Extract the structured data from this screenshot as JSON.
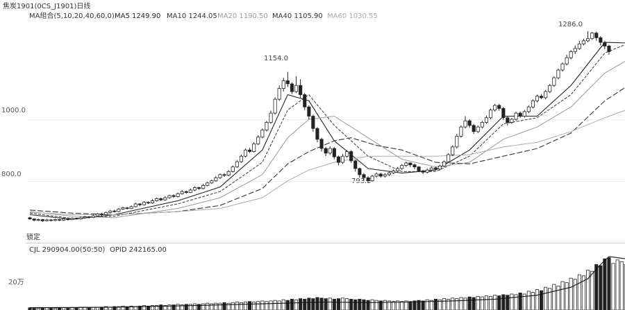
{
  "header": {
    "symbol_label": "焦炭1901(0CS_J1901)日线",
    "ma_combo_label": "MA组合(5,10,20,40,60,0)",
    "ma_readouts": [
      {
        "label": "MA5 1249.90",
        "color": "#222222"
      },
      {
        "label": "MA10 1244.05",
        "color": "#333333"
      },
      {
        "label": "MA20 1190.50",
        "color": "#9a9a9a"
      },
      {
        "label": "MA40 1105.90",
        "color": "#333333"
      },
      {
        "label": "MA60 1030.55",
        "color": "#aaaaaa"
      }
    ]
  },
  "price_panel": {
    "y_ticks": [
      {
        "label": "1000.0",
        "value": 1000
      },
      {
        "label": "800.0",
        "value": 800
      }
    ],
    "annotations": [
      {
        "label": "1154.0",
        "value": 1154
      },
      {
        "label": "793.5",
        "value": 793.5
      },
      {
        "label": "1286.0",
        "value": 1286
      }
    ],
    "corner_label": "锁定"
  },
  "volume_panel": {
    "cjl_label": "CJL  290904.00(50:50)",
    "opid_label": "OPID  242165.00",
    "y_tick_label": "20万"
  },
  "chart_data": {
    "type": "candlestick",
    "y_range_price": [
      610,
      1320
    ],
    "candles": [
      [
        680,
        676,
        683,
        673
      ],
      [
        676,
        672,
        678,
        668
      ],
      [
        672,
        674,
        677,
        669
      ],
      [
        674,
        670,
        676,
        666
      ],
      [
        670,
        673,
        676,
        668
      ],
      [
        673,
        671,
        675,
        668
      ],
      [
        671,
        674,
        677,
        669
      ],
      [
        674,
        672,
        676,
        669
      ],
      [
        672,
        676,
        679,
        670
      ],
      [
        676,
        674,
        678,
        671
      ],
      [
        674,
        678,
        681,
        672
      ],
      [
        678,
        676,
        680,
        674
      ],
      [
        676,
        680,
        684,
        674
      ],
      [
        680,
        683,
        686,
        677
      ],
      [
        683,
        681,
        685,
        678
      ],
      [
        681,
        686,
        690,
        679
      ],
      [
        686,
        692,
        695,
        684
      ],
      [
        692,
        690,
        696,
        686
      ],
      [
        690,
        697,
        700,
        688
      ],
      [
        697,
        702,
        705,
        694
      ],
      [
        702,
        700,
        706,
        697
      ],
      [
        700,
        708,
        711,
        698
      ],
      [
        708,
        712,
        716,
        705
      ],
      [
        712,
        710,
        715,
        707
      ],
      [
        710,
        716,
        720,
        708
      ],
      [
        716,
        725,
        729,
        713
      ],
      [
        725,
        722,
        727,
        718
      ],
      [
        722,
        730,
        734,
        720
      ],
      [
        730,
        728,
        733,
        725
      ],
      [
        728,
        735,
        740,
        725
      ],
      [
        735,
        742,
        746,
        732
      ],
      [
        742,
        738,
        745,
        734
      ],
      [
        738,
        745,
        750,
        735
      ],
      [
        745,
        752,
        755,
        742
      ],
      [
        752,
        749,
        756,
        745
      ],
      [
        749,
        758,
        762,
        746
      ],
      [
        758,
        765,
        770,
        755
      ],
      [
        765,
        762,
        768,
        758
      ],
      [
        762,
        770,
        775,
        760
      ],
      [
        770,
        778,
        782,
        766
      ],
      [
        778,
        775,
        780,
        771
      ],
      [
        775,
        785,
        790,
        772
      ],
      [
        785,
        793,
        797,
        782
      ],
      [
        793,
        800,
        804,
        790
      ],
      [
        800,
        810,
        815,
        797
      ],
      [
        810,
        820,
        824,
        806
      ],
      [
        820,
        818,
        825,
        813
      ],
      [
        818,
        830,
        835,
        815
      ],
      [
        830,
        845,
        850,
        827
      ],
      [
        845,
        862,
        867,
        842
      ],
      [
        862,
        880,
        885,
        858
      ],
      [
        880,
        900,
        905,
        876
      ],
      [
        900,
        895,
        907,
        890
      ],
      [
        895,
        920,
        926,
        892
      ],
      [
        920,
        942,
        948,
        916
      ],
      [
        942,
        965,
        970,
        938
      ],
      [
        965,
        990,
        995,
        960
      ],
      [
        990,
        1020,
        1028,
        985
      ],
      [
        1020,
        1065,
        1072,
        1015
      ],
      [
        1065,
        1100,
        1110,
        1060
      ],
      [
        1100,
        1125,
        1135,
        1090
      ],
      [
        1125,
        1115,
        1154,
        1105
      ],
      [
        1115,
        1090,
        1120,
        1082
      ],
      [
        1090,
        1110,
        1140,
        1085
      ],
      [
        1110,
        1080,
        1130,
        1070
      ],
      [
        1080,
        1040,
        1085,
        1030
      ],
      [
        1040,
        1010,
        1045,
        1000
      ],
      [
        1010,
        970,
        1015,
        960
      ],
      [
        970,
        935,
        975,
        925
      ],
      [
        935,
        905,
        940,
        895
      ],
      [
        905,
        890,
        910,
        880
      ],
      [
        890,
        905,
        912,
        884
      ],
      [
        905,
        878,
        910,
        870
      ],
      [
        878,
        860,
        882,
        850
      ],
      [
        860,
        880,
        888,
        855
      ],
      [
        880,
        895,
        900,
        875
      ],
      [
        895,
        865,
        900,
        858
      ],
      [
        865,
        840,
        868,
        830
      ],
      [
        840,
        820,
        843,
        810
      ],
      [
        820,
        810,
        825,
        800
      ],
      [
        810,
        800,
        815,
        793.5
      ],
      [
        800,
        815,
        820,
        797
      ],
      [
        815,
        822,
        827,
        810
      ],
      [
        822,
        815,
        826,
        810
      ],
      [
        815,
        820,
        825,
        810
      ],
      [
        820,
        826,
        830,
        815
      ],
      [
        826,
        832,
        836,
        822
      ],
      [
        832,
        840,
        845,
        828
      ],
      [
        840,
        850,
        855,
        836
      ],
      [
        850,
        858,
        862,
        845
      ],
      [
        858,
        852,
        860,
        845
      ],
      [
        852,
        845,
        856,
        838
      ],
      [
        845,
        832,
        848,
        828
      ],
      [
        832,
        828,
        836,
        822
      ],
      [
        828,
        835,
        840,
        824
      ],
      [
        835,
        842,
        846,
        830
      ],
      [
        842,
        838,
        846,
        833
      ],
      [
        838,
        848,
        852,
        834
      ],
      [
        848,
        862,
        866,
        845
      ],
      [
        862,
        885,
        890,
        858
      ],
      [
        885,
        910,
        916,
        880
      ],
      [
        910,
        945,
        952,
        905
      ],
      [
        945,
        975,
        980,
        940
      ],
      [
        975,
        995,
        1010,
        970
      ],
      [
        995,
        980,
        1000,
        972
      ],
      [
        980,
        960,
        985,
        952
      ],
      [
        960,
        975,
        980,
        955
      ],
      [
        975,
        990,
        995,
        970
      ],
      [
        990,
        1005,
        1012,
        985
      ],
      [
        1005,
        1030,
        1035,
        1000
      ],
      [
        1030,
        1045,
        1050,
        1025
      ],
      [
        1045,
        1035,
        1050,
        1028
      ],
      [
        1035,
        1005,
        1040,
        998
      ],
      [
        1005,
        990,
        1010,
        980
      ],
      [
        990,
        1000,
        1005,
        985
      ],
      [
        1000,
        1020,
        1025,
        995
      ],
      [
        1020,
        1010,
        1025,
        1005
      ],
      [
        1010,
        1025,
        1030,
        1005
      ],
      [
        1025,
        1040,
        1045,
        1020
      ],
      [
        1040,
        1060,
        1065,
        1035
      ],
      [
        1060,
        1075,
        1080,
        1055
      ],
      [
        1075,
        1070,
        1082,
        1065
      ],
      [
        1070,
        1090,
        1095,
        1065
      ],
      [
        1090,
        1110,
        1115,
        1085
      ],
      [
        1110,
        1135,
        1140,
        1105
      ],
      [
        1135,
        1160,
        1165,
        1130
      ],
      [
        1160,
        1180,
        1185,
        1155
      ],
      [
        1180,
        1200,
        1210,
        1175
      ],
      [
        1200,
        1220,
        1225,
        1195
      ],
      [
        1220,
        1230,
        1240,
        1212
      ],
      [
        1230,
        1245,
        1255,
        1225
      ],
      [
        1245,
        1255,
        1262,
        1240
      ],
      [
        1255,
        1262,
        1286,
        1250
      ],
      [
        1262,
        1280,
        1284,
        1258
      ],
      [
        1280,
        1265,
        1285,
        1255
      ],
      [
        1265,
        1250,
        1270,
        1240
      ],
      [
        1250,
        1238,
        1255,
        1228
      ],
      [
        1238,
        1220,
        1242,
        1210
      ]
    ],
    "ma_series": [
      {
        "name": "MA5",
        "color": "#222222",
        "dash": "",
        "width": 1.1,
        "points": [
          [
            0,
            690
          ],
          [
            10,
            675
          ],
          [
            20,
            690
          ],
          [
            35,
            735
          ],
          [
            45,
            780
          ],
          [
            55,
            900
          ],
          [
            61,
            1080
          ],
          [
            66,
            1060
          ],
          [
            72,
            930
          ],
          [
            80,
            840
          ],
          [
            88,
            825
          ],
          [
            96,
            835
          ],
          [
            104,
            900
          ],
          [
            112,
            1010
          ],
          [
            120,
            1010
          ],
          [
            128,
            1110
          ],
          [
            136,
            1250
          ],
          [
            141,
            1248
          ]
        ]
      },
      {
        "name": "MA10",
        "color": "#333333",
        "dash": "4,2",
        "width": 1.0,
        "points": [
          [
            0,
            695
          ],
          [
            10,
            678
          ],
          [
            20,
            685
          ],
          [
            35,
            725
          ],
          [
            45,
            765
          ],
          [
            55,
            860
          ],
          [
            61,
            1030
          ],
          [
            66,
            1080
          ],
          [
            72,
            980
          ],
          [
            80,
            880
          ],
          [
            88,
            830
          ],
          [
            96,
            830
          ],
          [
            104,
            880
          ],
          [
            112,
            985
          ],
          [
            120,
            1005
          ],
          [
            128,
            1080
          ],
          [
            136,
            1215
          ],
          [
            141,
            1244
          ]
        ]
      },
      {
        "name": "MA20",
        "color": "#9a9a9a",
        "dash": "",
        "width": 1.0,
        "points": [
          [
            0,
            700
          ],
          [
            10,
            685
          ],
          [
            20,
            680
          ],
          [
            35,
            710
          ],
          [
            45,
            745
          ],
          [
            55,
            820
          ],
          [
            61,
            940
          ],
          [
            66,
            1000
          ],
          [
            72,
            1010
          ],
          [
            80,
            940
          ],
          [
            88,
            870
          ],
          [
            96,
            845
          ],
          [
            104,
            860
          ],
          [
            112,
            935
          ],
          [
            120,
            975
          ],
          [
            128,
            1040
          ],
          [
            136,
            1150
          ],
          [
            141,
            1190
          ]
        ]
      },
      {
        "name": "MA40",
        "color": "#333333",
        "dash": "8,3",
        "width": 1.1,
        "points": [
          [
            0,
            705
          ],
          [
            10,
            695
          ],
          [
            20,
            690
          ],
          [
            35,
            700
          ],
          [
            45,
            720
          ],
          [
            55,
            775
          ],
          [
            61,
            855
          ],
          [
            66,
            895
          ],
          [
            72,
            930
          ],
          [
            76,
            940
          ],
          [
            82,
            915
          ],
          [
            88,
            900
          ],
          [
            96,
            860
          ],
          [
            104,
            855
          ],
          [
            112,
            880
          ],
          [
            120,
            905
          ],
          [
            128,
            955
          ],
          [
            136,
            1060
          ],
          [
            141,
            1105
          ]
        ]
      },
      {
        "name": "MA60",
        "color": "#aaaaaa",
        "dash": "",
        "width": 1.0,
        "points": [
          [
            0,
            698
          ],
          [
            10,
            690
          ],
          [
            20,
            690
          ],
          [
            35,
            700
          ],
          [
            45,
            710
          ],
          [
            55,
            745
          ],
          [
            61,
            800
          ],
          [
            66,
            835
          ],
          [
            72,
            860
          ],
          [
            80,
            880
          ],
          [
            88,
            880
          ],
          [
            96,
            880
          ],
          [
            104,
            885
          ],
          [
            112,
            910
          ],
          [
            120,
            925
          ],
          [
            128,
            960
          ],
          [
            136,
            1005
          ],
          [
            141,
            1030
          ]
        ]
      }
    ],
    "volume_bars": [
      4,
      3,
      3,
      3,
      4,
      3,
      3,
      4,
      4,
      3,
      4,
      4,
      5,
      5,
      4,
      5,
      5,
      5,
      6,
      5,
      6,
      6,
      7,
      6,
      7,
      6,
      7,
      8,
      7,
      8,
      8,
      9,
      8,
      9,
      9,
      10,
      9,
      10,
      10,
      11,
      10,
      11,
      12,
      11,
      12,
      12,
      13,
      12,
      13,
      14,
      13,
      14,
      15,
      14,
      15,
      16,
      15,
      16,
      17,
      16,
      18,
      17,
      19,
      18,
      20,
      19,
      21,
      20,
      22,
      21,
      20,
      21,
      19,
      20,
      21,
      20,
      19,
      18,
      19,
      18,
      17,
      18,
      17,
      16,
      17,
      16,
      15,
      16,
      15,
      16,
      15,
      16,
      17,
      16,
      18,
      17,
      19,
      18,
      20,
      19,
      21,
      20,
      22,
      21,
      23,
      22,
      24,
      23,
      25,
      24,
      26,
      25,
      27,
      26,
      28,
      27,
      30,
      28,
      33,
      31,
      36,
      34,
      40,
      38,
      45,
      42,
      50,
      48,
      56,
      54,
      62,
      60,
      70,
      68,
      80,
      78,
      90,
      92,
      82,
      88,
      85,
      80
    ],
    "opid_points": [
      [
        0,
        4
      ],
      [
        20,
        5
      ],
      [
        40,
        8
      ],
      [
        60,
        12
      ],
      [
        70,
        14
      ],
      [
        80,
        13
      ],
      [
        90,
        14
      ],
      [
        100,
        16
      ],
      [
        110,
        19
      ],
      [
        120,
        26
      ],
      [
        128,
        40
      ],
      [
        132,
        55
      ],
      [
        135,
        80
      ],
      [
        137,
        94
      ],
      [
        139,
        92
      ],
      [
        141,
        90
      ]
    ],
    "volume_max": 100
  }
}
